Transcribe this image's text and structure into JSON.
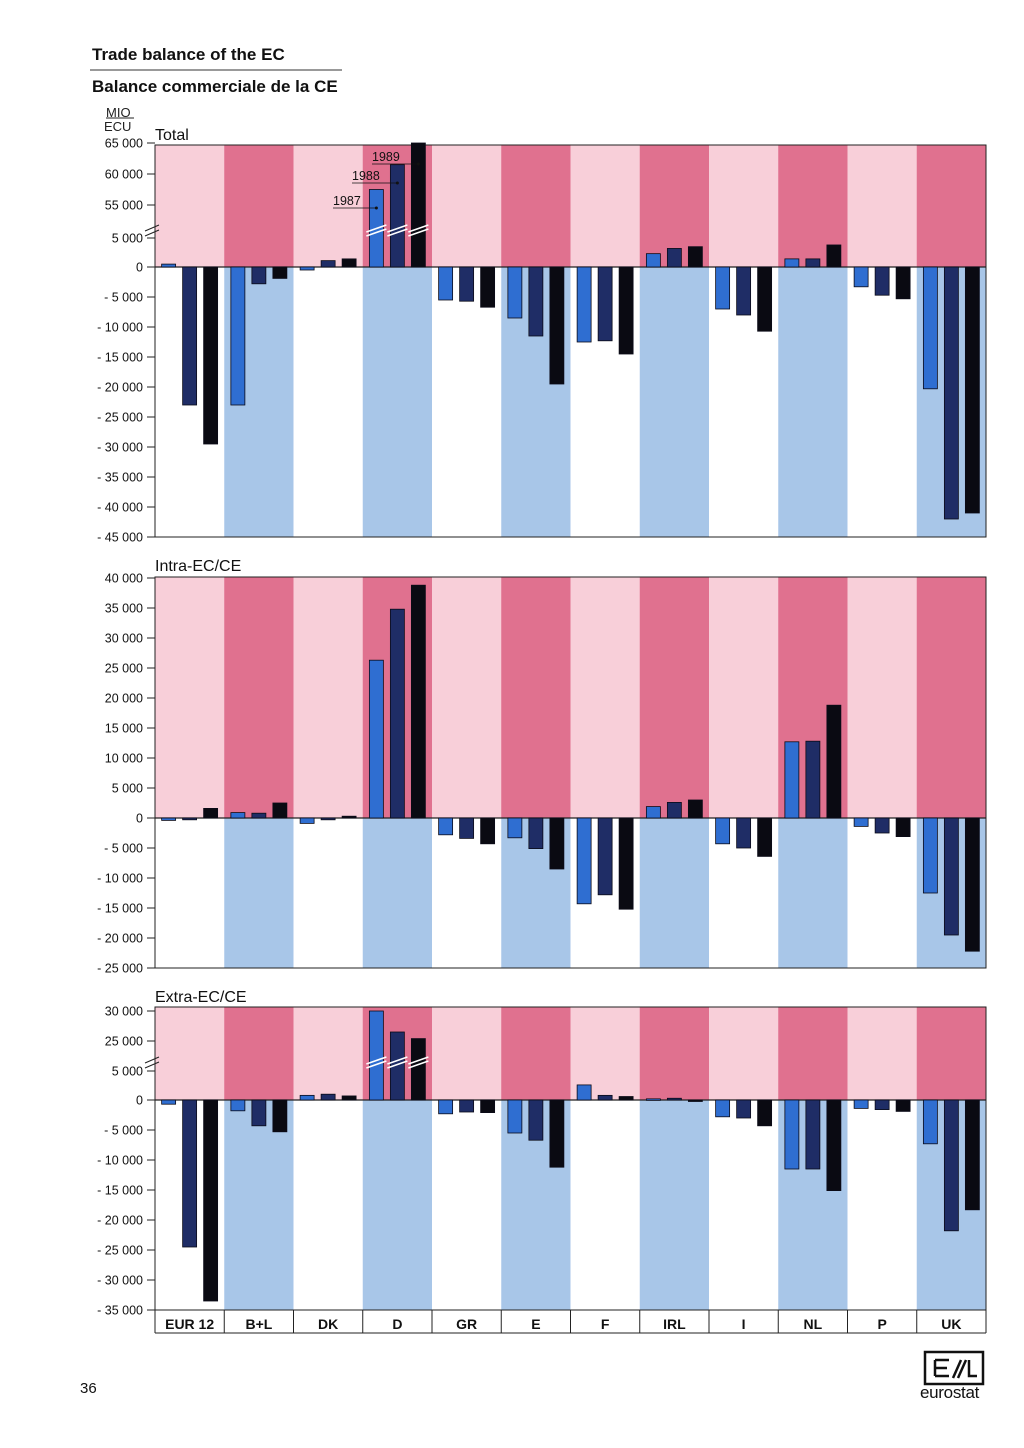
{
  "header": {
    "title_en": "Trade balance of the EC",
    "title_fr": "Balance commerciale de la CE",
    "unit_line1": "MIO",
    "unit_line2": "ECU"
  },
  "footer": {
    "page_number": "36",
    "logo_text": "eurostat"
  },
  "colors": {
    "band_light_pink": "#f8cfd9",
    "band_rose": "#e0718f",
    "band_white": "#ffffff",
    "band_light_blue": "#a8c6e8",
    "series_1987": "#2f6ed1",
    "series_1988": "#1f2d66",
    "series_1989": "#0a0a12"
  },
  "chart_data": [
    {
      "type": "bar",
      "title": "Total",
      "categories": [
        "EUR 12",
        "B+L",
        "DK",
        "D",
        "GR",
        "E",
        "F",
        "IRL",
        "I",
        "NL",
        "P",
        "UK"
      ],
      "ylabel": "MIO ECU",
      "ylim": [
        -45000,
        65000
      ],
      "axis_break": {
        "after_tick": 5000,
        "resumes_at": 55000
      },
      "yticks": [
        {
          "value": 65000,
          "label": "65 000"
        },
        {
          "value": 60000,
          "label": "60 000"
        },
        {
          "value": 55000,
          "label": "55 000"
        },
        {
          "value": 5000,
          "label": "5 000"
        },
        {
          "value": 0,
          "label": "0"
        },
        {
          "value": -5000,
          "label": "- 5 000"
        },
        {
          "value": -10000,
          "label": "- 10 000"
        },
        {
          "value": -15000,
          "label": "- 15 000"
        },
        {
          "value": -20000,
          "label": "- 20 000"
        },
        {
          "value": -25000,
          "label": "- 25 000"
        },
        {
          "value": -30000,
          "label": "- 30 000"
        },
        {
          "value": -35000,
          "label": "- 35 000"
        },
        {
          "value": -40000,
          "label": "- 40 000"
        },
        {
          "value": -45000,
          "label": "- 45 000"
        }
      ],
      "annotations": [
        "1987",
        "1988",
        "1989"
      ],
      "series": [
        {
          "name": "1987",
          "values": [
            500,
            -23000,
            -500,
            57500,
            -5500,
            -8500,
            -12500,
            2300,
            -7000,
            1400,
            -3300,
            -20300
          ]
        },
        {
          "name": "1988",
          "values": [
            -23000,
            -2800,
            1100,
            61500,
            -5700,
            -11500,
            -12300,
            3200,
            -8000,
            1400,
            -4700,
            -42000
          ]
        },
        {
          "name": "1989",
          "values": [
            -29500,
            -1900,
            1400,
            65000,
            -6700,
            -19500,
            -14500,
            3500,
            -10700,
            3800,
            -5300,
            -41000
          ]
        }
      ],
      "legend": "none",
      "grid": false
    },
    {
      "type": "bar",
      "title": "Intra-EC/CE",
      "categories": [
        "EUR 12",
        "B+L",
        "DK",
        "D",
        "GR",
        "E",
        "F",
        "IRL",
        "I",
        "NL",
        "P",
        "UK"
      ],
      "ylabel": "MIO ECU",
      "ylim": [
        -25000,
        40000
      ],
      "yticks": [
        {
          "value": 40000,
          "label": "40 000"
        },
        {
          "value": 35000,
          "label": "35 000"
        },
        {
          "value": 30000,
          "label": "30 000"
        },
        {
          "value": 25000,
          "label": "25 000"
        },
        {
          "value": 20000,
          "label": "20 000"
        },
        {
          "value": 15000,
          "label": "15 000"
        },
        {
          "value": 10000,
          "label": "10 000"
        },
        {
          "value": 5000,
          "label": "5 000"
        },
        {
          "value": 0,
          "label": "0"
        },
        {
          "value": -5000,
          "label": "- 5 000"
        },
        {
          "value": -10000,
          "label": "- 10 000"
        },
        {
          "value": -15000,
          "label": "- 15 000"
        },
        {
          "value": -20000,
          "label": "- 20 000"
        },
        {
          "value": -25000,
          "label": "- 25 000"
        }
      ],
      "series": [
        {
          "name": "1987",
          "values": [
            -400,
            900,
            -900,
            26300,
            -2800,
            -3300,
            -14300,
            1900,
            -4300,
            12700,
            -1400,
            -12500
          ]
        },
        {
          "name": "1988",
          "values": [
            -300,
            800,
            -300,
            34800,
            -3400,
            -5100,
            -12800,
            2600,
            -5000,
            12800,
            -2500,
            -19500
          ]
        },
        {
          "name": "1989",
          "values": [
            1600,
            2500,
            300,
            38800,
            -4300,
            -8500,
            -15200,
            3000,
            -6400,
            18800,
            -3100,
            -22200
          ]
        }
      ],
      "legend": "none",
      "grid": false
    },
    {
      "type": "bar",
      "title": "Extra-EC/CE",
      "categories": [
        "EUR 12",
        "B+L",
        "DK",
        "D",
        "GR",
        "E",
        "F",
        "IRL",
        "I",
        "NL",
        "P",
        "UK"
      ],
      "ylabel": "MIO ECU",
      "ylim": [
        -35000,
        30000
      ],
      "axis_break": {
        "after_tick": 5000,
        "resumes_at": 25000
      },
      "yticks": [
        {
          "value": 30000,
          "label": "30 000"
        },
        {
          "value": 25000,
          "label": "25 000"
        },
        {
          "value": 5000,
          "label": "5 000"
        },
        {
          "value": 0,
          "label": "0"
        },
        {
          "value": -5000,
          "label": "- 5 000"
        },
        {
          "value": -10000,
          "label": "- 10 000"
        },
        {
          "value": -15000,
          "label": "- 15 000"
        },
        {
          "value": -20000,
          "label": "- 20 000"
        },
        {
          "value": -25000,
          "label": "- 25 000"
        },
        {
          "value": -30000,
          "label": "- 30 000"
        },
        {
          "value": -35000,
          "label": "- 35 000"
        }
      ],
      "series": [
        {
          "name": "1987",
          "values": [
            -700,
            -1800,
            800,
            30000,
            -2300,
            -5500,
            2600,
            200,
            -2800,
            -11500,
            -1400,
            -7300
          ]
        },
        {
          "name": "1988",
          "values": [
            -24500,
            -4300,
            1000,
            26500,
            -2000,
            -6700,
            800,
            300,
            -3000,
            -11500,
            -1600,
            -21800
          ]
        },
        {
          "name": "1989",
          "values": [
            -33500,
            -5300,
            700,
            25400,
            -2100,
            -11200,
            600,
            -200,
            -4300,
            -15100,
            -1900,
            -18300
          ]
        }
      ],
      "legend": "none",
      "grid": false
    }
  ]
}
